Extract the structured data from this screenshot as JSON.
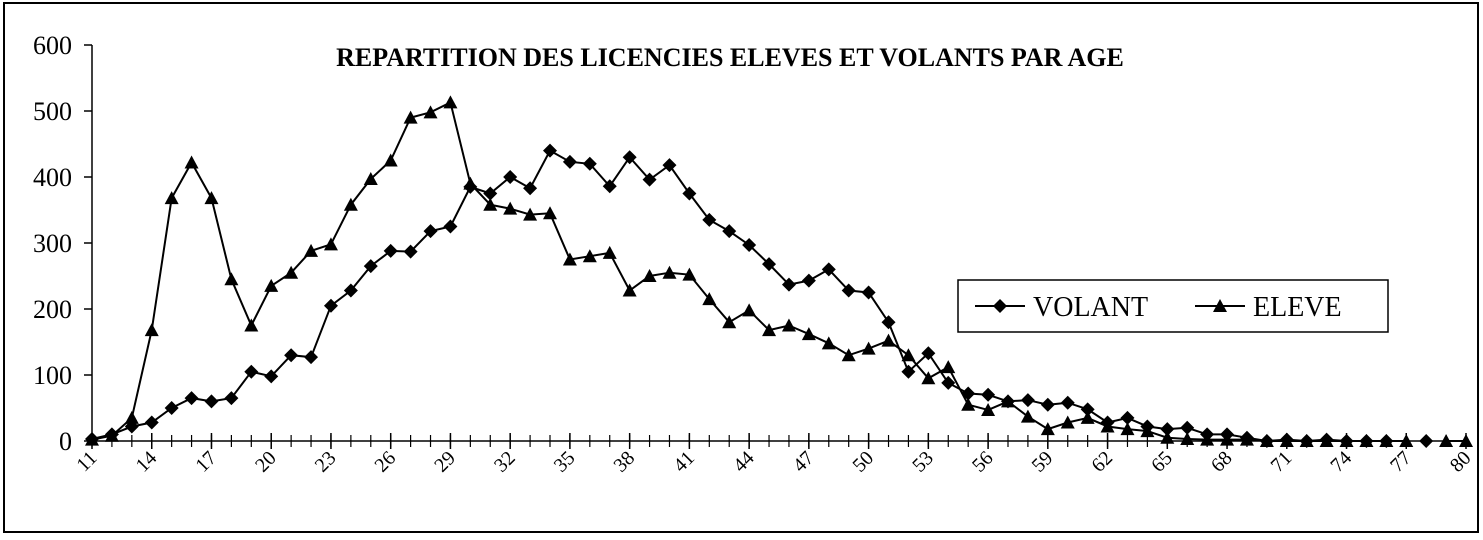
{
  "chart_data": {
    "type": "line",
    "title": "REPARTITION DES LICENCIES ELEVES ET VOLANTS PAR AGE",
    "x": [
      11,
      12,
      13,
      14,
      15,
      16,
      17,
      18,
      19,
      20,
      21,
      22,
      23,
      24,
      25,
      26,
      27,
      28,
      29,
      30,
      31,
      32,
      33,
      34,
      35,
      36,
      37,
      38,
      39,
      40,
      41,
      42,
      43,
      44,
      45,
      46,
      47,
      48,
      49,
      50,
      51,
      52,
      53,
      54,
      55,
      56,
      57,
      58,
      59,
      60,
      61,
      62,
      63,
      64,
      65,
      66,
      67,
      68,
      69,
      70,
      71,
      72,
      73,
      74,
      75,
      76,
      77,
      78,
      79,
      80
    ],
    "series": [
      {
        "name": "VOLANT",
        "color": "#000000",
        "marker": "diamond",
        "values": [
          3,
          10,
          22,
          28,
          50,
          65,
          60,
          65,
          105,
          98,
          130,
          127,
          205,
          228,
          265,
          288,
          287,
          318,
          325,
          385,
          375,
          400,
          383,
          440,
          423,
          420,
          386,
          430,
          396,
          418,
          375,
          335,
          318,
          297,
          268,
          237,
          243,
          260,
          228,
          225,
          180,
          105,
          133,
          88,
          72,
          70,
          60,
          62,
          55,
          58,
          48,
          28,
          35,
          22,
          18,
          20,
          10,
          10,
          5,
          0,
          2,
          0,
          2,
          0,
          0,
          0,
          null,
          0,
          null,
          null
        ]
      },
      {
        "name": "ELEVE",
        "color": "#000000",
        "marker": "triangle",
        "values": [
          2,
          8,
          35,
          168,
          368,
          422,
          368,
          245,
          175,
          235,
          255,
          288,
          298,
          358,
          397,
          425,
          490,
          498,
          513,
          390,
          358,
          352,
          343,
          345,
          275,
          280,
          285,
          228,
          250,
          255,
          252,
          215,
          180,
          198,
          168,
          175,
          162,
          148,
          130,
          140,
          152,
          130,
          95,
          112,
          55,
          47,
          60,
          37,
          18,
          28,
          35,
          22,
          18,
          15,
          5,
          3,
          2,
          2,
          2,
          0,
          0,
          0,
          0,
          0,
          0,
          0,
          0,
          null,
          0,
          0
        ]
      }
    ],
    "xlim": [
      11,
      80
    ],
    "xticks": [
      11,
      14,
      17,
      20,
      23,
      26,
      29,
      32,
      35,
      38,
      41,
      44,
      47,
      50,
      53,
      56,
      59,
      62,
      65,
      68,
      71,
      74,
      77,
      80
    ],
    "ylim": [
      0,
      600
    ],
    "yticks": [
      0,
      100,
      200,
      300,
      400,
      500,
      600
    ],
    "legend": "right"
  }
}
